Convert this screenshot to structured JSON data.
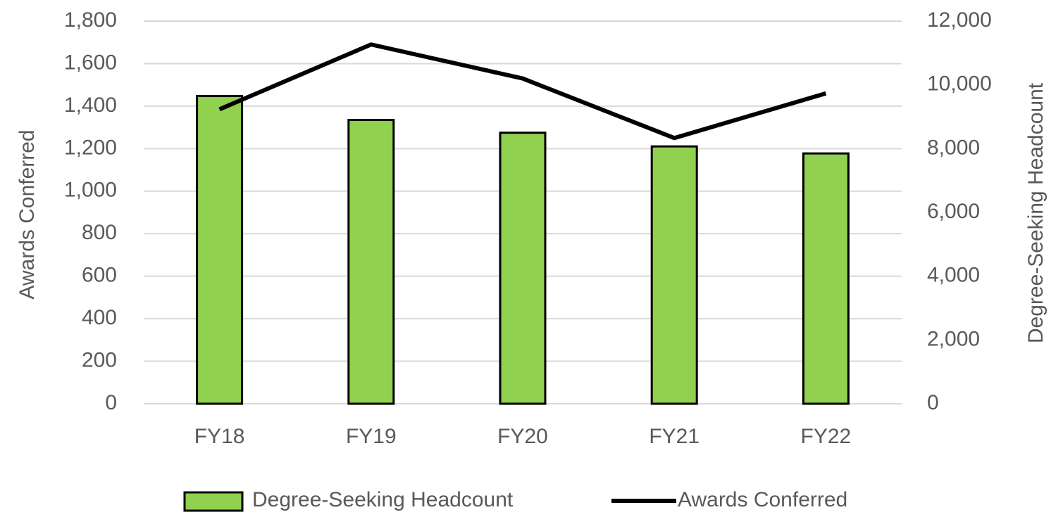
{
  "chart_data": {
    "type": "combo",
    "categories": [
      "FY18",
      "FY19",
      "FY20",
      "FY21",
      "FY22"
    ],
    "series": [
      {
        "name": "Degree-Seeking Headcount",
        "type": "bar",
        "axis": "y2",
        "color": "#92d050",
        "values": [
          9650,
          8900,
          8500,
          8070,
          7850
        ]
      },
      {
        "name": "Awards Conferred",
        "type": "line",
        "color": "#000000",
        "values": [
          1385,
          1690,
          1530,
          1250,
          1460
        ]
      }
    ],
    "y_label": "Awards Conferred",
    "y2_label": "Degree-Seeking  Headcount",
    "ylim": [
      0,
      1800
    ],
    "yticks": [
      0,
      200,
      400,
      600,
      800,
      {
        "value": 1000,
        "label": "1,000"
      },
      {
        "value": 1200,
        "label": "1,200"
      },
      {
        "value": 1400,
        "label": "1,400"
      },
      {
        "value": 1600,
        "label": "1,600"
      },
      {
        "value": 1800,
        "label": "1,800"
      }
    ],
    "y2lim": [
      0,
      12000
    ],
    "y2ticks": [
      0,
      {
        "value": 2000,
        "label": "2,000"
      },
      {
        "value": 4000,
        "label": "4,000"
      },
      {
        "value": 6000,
        "label": "6,000"
      },
      {
        "value": 8000,
        "label": "8,000"
      },
      {
        "value": 10000,
        "label": "10,000"
      },
      {
        "value": 12000,
        "label": "12,000"
      }
    ],
    "grid": true,
    "legend": "bottom"
  }
}
